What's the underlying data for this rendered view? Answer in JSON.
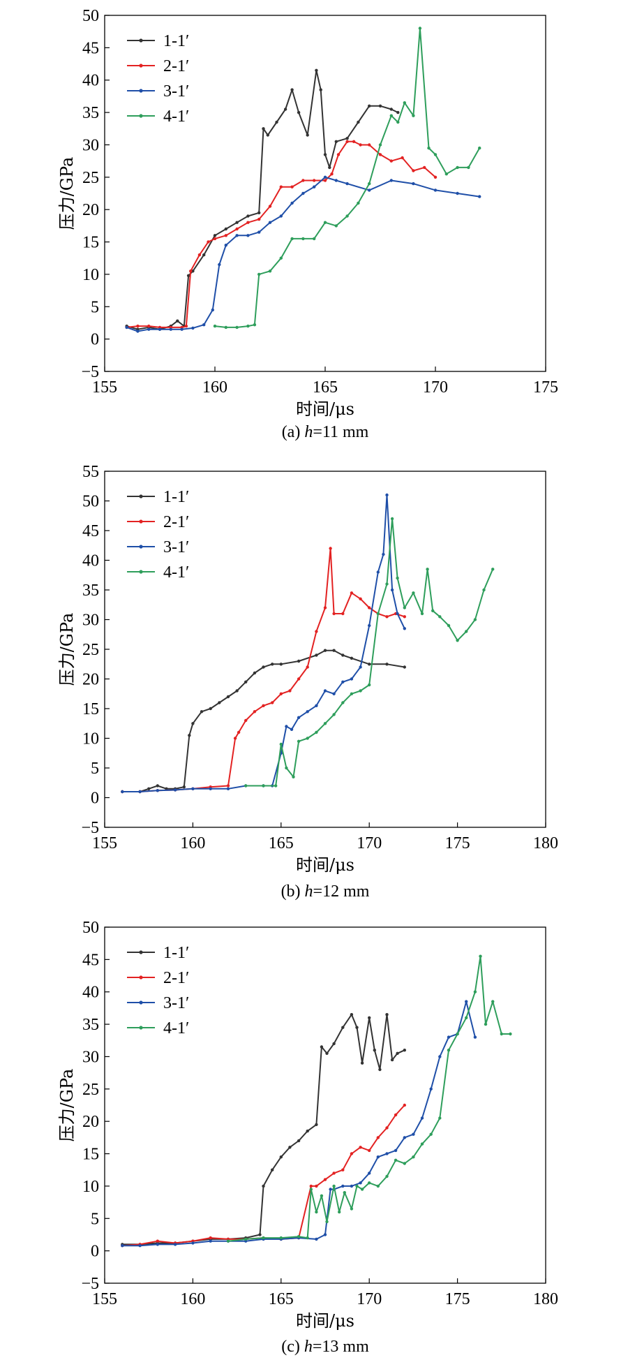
{
  "chart_data": [
    {
      "type": "line",
      "title": "",
      "caption_prefix": "(a) ",
      "caption_var": "h",
      "caption_rest": "=11 mm",
      "xlabel": "时间/μs",
      "ylabel": "压力/GPa",
      "xlim": [
        155,
        175
      ],
      "ylim": [
        -5,
        50
      ],
      "xticks": [
        155,
        160,
        165,
        170,
        175
      ],
      "yticks": [
        -5,
        0,
        5,
        10,
        15,
        20,
        25,
        30,
        35,
        40,
        45,
        50
      ],
      "legend_position": "top-left",
      "series": [
        {
          "name": "1-1′",
          "color": "#333333",
          "x": [
            156,
            156.5,
            157,
            157.5,
            158,
            158.3,
            158.6,
            158.8,
            159,
            159.5,
            160,
            160.5,
            161,
            161.5,
            162,
            162.2,
            162.4,
            162.8,
            163.2,
            163.5,
            163.8,
            164.2,
            164.6,
            164.8,
            165,
            165.2,
            165.5,
            166,
            166.5,
            167,
            167.5,
            168,
            168.3
          ],
          "y": [
            2,
            1.5,
            1.8,
            1.5,
            2,
            2.8,
            2,
            9.8,
            10.5,
            13,
            16,
            17,
            18,
            19,
            19.5,
            32.5,
            31.5,
            33.5,
            35.5,
            38.5,
            35,
            31.5,
            41.5,
            38.5,
            28.5,
            26.5,
            30.5,
            31,
            33.5,
            36,
            36,
            35.5,
            35
          ]
        },
        {
          "name": "2-1′",
          "color": "#e32222",
          "x": [
            156,
            156.5,
            157,
            157.5,
            158,
            158.5,
            158.7,
            158.9,
            159.3,
            159.7,
            160,
            160.5,
            161,
            161.5,
            162,
            162.5,
            163,
            163.5,
            164,
            164.5,
            165,
            165.3,
            165.6,
            166,
            166.3,
            166.6,
            167,
            167.5,
            168,
            168.5,
            169,
            169.5,
            170
          ],
          "y": [
            1.8,
            2,
            2,
            1.8,
            1.8,
            1.8,
            2,
            10.5,
            13,
            15,
            15.5,
            16,
            17,
            18,
            18.5,
            20.5,
            23.5,
            23.5,
            24.5,
            24.5,
            24.5,
            25.5,
            28.5,
            30.5,
            30.5,
            30,
            30,
            28.5,
            27.5,
            28,
            26,
            26.5,
            25
          ]
        },
        {
          "name": "3-1′",
          "color": "#1f4fa8",
          "x": [
            156,
            156.5,
            157,
            157.5,
            158,
            158.5,
            159,
            159.5,
            159.9,
            160.2,
            160.5,
            161,
            161.5,
            162,
            162.5,
            163,
            163.5,
            164,
            164.5,
            165,
            165.5,
            166,
            167,
            168,
            169,
            170,
            171,
            172
          ],
          "y": [
            1.8,
            1.2,
            1.5,
            1.5,
            1.5,
            1.5,
            1.7,
            2.2,
            4.5,
            11.5,
            14.5,
            16,
            16,
            16.5,
            18,
            19,
            21,
            22.5,
            23.5,
            25,
            24.5,
            24,
            23,
            24.5,
            24,
            23,
            22.5,
            22
          ]
        },
        {
          "name": "4-1′",
          "color": "#2e9e5b",
          "x": [
            160,
            160.5,
            161,
            161.5,
            161.8,
            162,
            162.5,
            163,
            163.5,
            164,
            164.5,
            165,
            165.5,
            166,
            166.5,
            167,
            167.5,
            168,
            168.3,
            168.6,
            169,
            169.3,
            169.7,
            170,
            170.5,
            171,
            171.5,
            172
          ],
          "y": [
            2,
            1.8,
            1.8,
            2,
            2.2,
            10,
            10.5,
            12.5,
            15.5,
            15.5,
            15.5,
            18,
            17.5,
            19,
            21,
            24,
            30,
            34.5,
            33.5,
            36.5,
            34.5,
            48,
            29.5,
            28.5,
            25.5,
            26.5,
            26.5,
            29.5
          ]
        }
      ]
    },
    {
      "type": "line",
      "title": "",
      "caption_prefix": "(b) ",
      "caption_var": "h",
      "caption_rest": "=12 mm",
      "xlabel": "时间/μs",
      "ylabel": "压力/GPa",
      "xlim": [
        155,
        180
      ],
      "ylim": [
        -5,
        55
      ],
      "xticks": [
        155,
        160,
        165,
        170,
        175,
        180
      ],
      "yticks": [
        -5,
        0,
        5,
        10,
        15,
        20,
        25,
        30,
        35,
        40,
        45,
        50,
        55
      ],
      "legend_position": "top-left",
      "series": [
        {
          "name": "1-1′",
          "color": "#333333",
          "x": [
            156,
            157,
            157.5,
            158,
            158.5,
            159,
            159.5,
            159.8,
            160,
            160.5,
            161,
            161.5,
            162,
            162.5,
            163,
            163.5,
            164,
            164.5,
            165,
            166,
            167,
            167.5,
            168,
            168.5,
            169,
            170,
            171,
            172
          ],
          "y": [
            1,
            1,
            1.5,
            2,
            1.5,
            1.5,
            1.8,
            10.5,
            12.5,
            14.5,
            15,
            16,
            17,
            18,
            19.5,
            21,
            22,
            22.5,
            22.5,
            23,
            24,
            24.8,
            24.8,
            24,
            23.5,
            22.5,
            22.5,
            22
          ]
        },
        {
          "name": "2-1′",
          "color": "#e32222",
          "x": [
            156,
            157,
            158,
            159,
            160,
            161,
            162,
            162.4,
            162.6,
            163,
            163.5,
            164,
            164.5,
            165,
            165.5,
            166,
            166.5,
            167,
            167.5,
            167.8,
            168,
            168.5,
            169,
            169.5,
            170,
            170.5,
            171,
            171.5,
            172
          ],
          "y": [
            1,
            1,
            1.2,
            1.3,
            1.5,
            1.8,
            2,
            10,
            11,
            13,
            14.5,
            15.5,
            16,
            17.5,
            18,
            20,
            22,
            28,
            32,
            42,
            31,
            31,
            34.5,
            33.5,
            32,
            31,
            30.5,
            31,
            30.5
          ]
        },
        {
          "name": "3-1′",
          "color": "#1f4fa8",
          "x": [
            156,
            157,
            158,
            159,
            160,
            161,
            162,
            163,
            164,
            164.5,
            165,
            165.3,
            165.6,
            166,
            166.5,
            167,
            167.5,
            168,
            168.5,
            169,
            169.5,
            170,
            170.5,
            170.8,
            171,
            171.3,
            171.6,
            172
          ],
          "y": [
            1,
            1,
            1.2,
            1.3,
            1.5,
            1.5,
            1.5,
            2,
            2,
            2,
            7.5,
            12,
            11.5,
            13.5,
            14.5,
            15.5,
            18,
            17.5,
            19.5,
            20,
            22,
            29,
            38,
            41,
            51,
            35,
            31,
            28.5
          ]
        },
        {
          "name": "4-1′",
          "color": "#2e9e5b",
          "x": [
            163,
            164,
            164.7,
            165,
            165.3,
            165.7,
            166,
            166.5,
            167,
            167.5,
            168,
            168.5,
            169,
            169.5,
            170,
            170.5,
            171,
            171.3,
            171.6,
            172,
            172.5,
            173,
            173.3,
            173.6,
            174,
            174.5,
            175,
            175.5,
            176,
            176.5,
            177
          ],
          "y": [
            2,
            2,
            2,
            9,
            5,
            3.5,
            9.5,
            10,
            11,
            12.5,
            14,
            16,
            17.5,
            18,
            19,
            31,
            36,
            47,
            37,
            32,
            34.5,
            31,
            38.5,
            31.5,
            30.5,
            29,
            26.5,
            28,
            30,
            35,
            38.5
          ]
        }
      ]
    },
    {
      "type": "line",
      "title": "",
      "caption_prefix": "(c) ",
      "caption_var": "h",
      "caption_rest": "=13 mm",
      "xlabel": "时间/μs",
      "ylabel": "压力/GPa",
      "xlim": [
        155,
        180
      ],
      "ylim": [
        -5,
        50
      ],
      "xticks": [
        155,
        160,
        165,
        170,
        175,
        180
      ],
      "yticks": [
        -5,
        0,
        5,
        10,
        15,
        20,
        25,
        30,
        35,
        40,
        45,
        50
      ],
      "legend_position": "top-left",
      "series": [
        {
          "name": "1-1′",
          "color": "#333333",
          "x": [
            156,
            157,
            158,
            159,
            160,
            161,
            162,
            163,
            163.8,
            164,
            164.5,
            165,
            165.5,
            166,
            166.5,
            167,
            167.3,
            167.6,
            168,
            168.5,
            169,
            169.3,
            169.6,
            170,
            170.3,
            170.6,
            171,
            171.3,
            171.6,
            172
          ],
          "y": [
            1,
            1,
            1.2,
            1.2,
            1.5,
            1.8,
            1.8,
            2,
            2.5,
            10,
            12.5,
            14.5,
            16,
            17,
            18.5,
            19.5,
            31.5,
            30.5,
            32,
            34.5,
            36.5,
            34.5,
            29,
            36,
            31,
            28,
            36.5,
            29.5,
            30.5,
            31
          ]
        },
        {
          "name": "2-1′",
          "color": "#e32222",
          "x": [
            156,
            157,
            158,
            159,
            160,
            161,
            162,
            163,
            164,
            165,
            166,
            166.7,
            167,
            167.5,
            168,
            168.5,
            169,
            169.5,
            170,
            170.5,
            171,
            171.5,
            172
          ],
          "y": [
            0.8,
            1,
            1.5,
            1.2,
            1.5,
            2,
            1.8,
            1.8,
            2,
            1.8,
            2,
            10,
            10,
            11,
            12,
            12.5,
            15,
            16,
            15.5,
            17.5,
            19,
            21,
            22.5
          ]
        },
        {
          "name": "3-1′",
          "color": "#1f4fa8",
          "x": [
            156,
            157,
            158,
            159,
            160,
            161,
            162,
            163,
            164,
            165,
            166,
            167,
            167.5,
            167.8,
            168,
            168.5,
            169,
            169.5,
            170,
            170.5,
            171,
            171.5,
            172,
            172.5,
            173,
            173.5,
            174,
            174.5,
            175,
            175.5,
            176
          ],
          "y": [
            0.8,
            0.8,
            1,
            1,
            1.2,
            1.5,
            1.5,
            1.5,
            1.8,
            1.8,
            2,
            1.8,
            2.5,
            9.5,
            9.5,
            10,
            10,
            10.5,
            12,
            14.5,
            15,
            15.5,
            17.5,
            18,
            20.5,
            25,
            30,
            33,
            33.5,
            38.5,
            33
          ]
        },
        {
          "name": "4-1′",
          "color": "#2e9e5b",
          "x": [
            162,
            163,
            164,
            165,
            166,
            166.5,
            166.7,
            167,
            167.3,
            167.6,
            168,
            168.3,
            168.6,
            169,
            169.3,
            169.6,
            170,
            170.5,
            171,
            171.5,
            172,
            172.5,
            173,
            173.5,
            174,
            174.5,
            175,
            175.5,
            176,
            176.3,
            176.6,
            177,
            177.5,
            178
          ],
          "y": [
            1.5,
            1.8,
            2,
            2,
            2.2,
            2,
            9.5,
            6,
            8.5,
            4.5,
            10,
            6,
            9,
            6.5,
            10,
            9.5,
            10.5,
            10,
            11.5,
            14,
            13.5,
            14.5,
            16.5,
            18,
            20.5,
            31,
            33.5,
            36,
            40,
            45.5,
            35,
            38.5,
            33.5,
            33.5
          ]
        }
      ]
    }
  ]
}
